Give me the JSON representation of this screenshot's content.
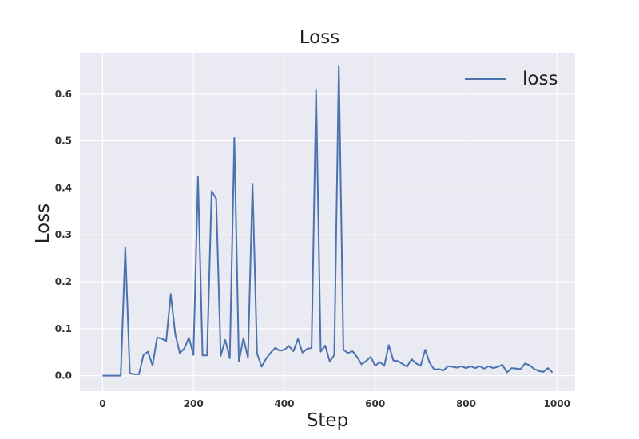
{
  "chart_data": {
    "type": "line",
    "title": "Loss",
    "xlabel": "Step",
    "ylabel": "Loss",
    "xlim": [
      -50,
      1040
    ],
    "ylim": [
      -0.033,
      0.688
    ],
    "xticks": [
      0,
      200,
      400,
      600,
      800,
      1000
    ],
    "yticks": [
      0.0,
      0.1,
      0.2,
      0.3,
      0.4,
      0.5,
      0.6
    ],
    "grid": true,
    "legend_position": "top-right",
    "colors": {
      "background": "#eaeaf2",
      "grid": "#ffffff",
      "line": "#4c72b0"
    },
    "series": [
      {
        "name": "loss",
        "x": [
          0,
          10,
          20,
          30,
          40,
          50,
          60,
          70,
          80,
          90,
          100,
          110,
          120,
          130,
          140,
          150,
          160,
          170,
          180,
          190,
          200,
          210,
          220,
          230,
          240,
          250,
          260,
          270,
          280,
          290,
          300,
          310,
          320,
          330,
          340,
          350,
          360,
          370,
          380,
          390,
          400,
          410,
          420,
          430,
          440,
          450,
          460,
          470,
          480,
          490,
          500,
          510,
          520,
          530,
          540,
          550,
          560,
          570,
          580,
          590,
          600,
          610,
          620,
          630,
          640,
          650,
          660,
          670,
          680,
          690,
          700,
          710,
          720,
          730,
          740,
          750,
          760,
          770,
          780,
          790,
          800,
          810,
          820,
          830,
          840,
          850,
          860,
          870,
          880,
          890,
          900,
          910,
          920,
          930,
          940,
          950,
          960,
          970,
          980,
          990
        ],
        "y": [
          0.0,
          0.0,
          0.0,
          0.0,
          0.0,
          0.273,
          0.005,
          0.003,
          0.003,
          0.044,
          0.051,
          0.021,
          0.081,
          0.079,
          0.073,
          0.174,
          0.088,
          0.048,
          0.058,
          0.081,
          0.044,
          0.423,
          0.043,
          0.043,
          0.393,
          0.377,
          0.042,
          0.076,
          0.037,
          0.506,
          0.03,
          0.08,
          0.038,
          0.409,
          0.047,
          0.019,
          0.036,
          0.049,
          0.059,
          0.053,
          0.055,
          0.063,
          0.052,
          0.078,
          0.049,
          0.057,
          0.059,
          0.608,
          0.051,
          0.064,
          0.03,
          0.044,
          0.659,
          0.055,
          0.048,
          0.052,
          0.04,
          0.024,
          0.031,
          0.04,
          0.021,
          0.029,
          0.021,
          0.065,
          0.032,
          0.031,
          0.025,
          0.019,
          0.035,
          0.026,
          0.021,
          0.055,
          0.027,
          0.013,
          0.014,
          0.011,
          0.02,
          0.019,
          0.017,
          0.02,
          0.016,
          0.02,
          0.016,
          0.02,
          0.015,
          0.02,
          0.016,
          0.019,
          0.023,
          0.007,
          0.016,
          0.015,
          0.014,
          0.026,
          0.022,
          0.014,
          0.01,
          0.008,
          0.016,
          0.007
        ]
      }
    ]
  }
}
